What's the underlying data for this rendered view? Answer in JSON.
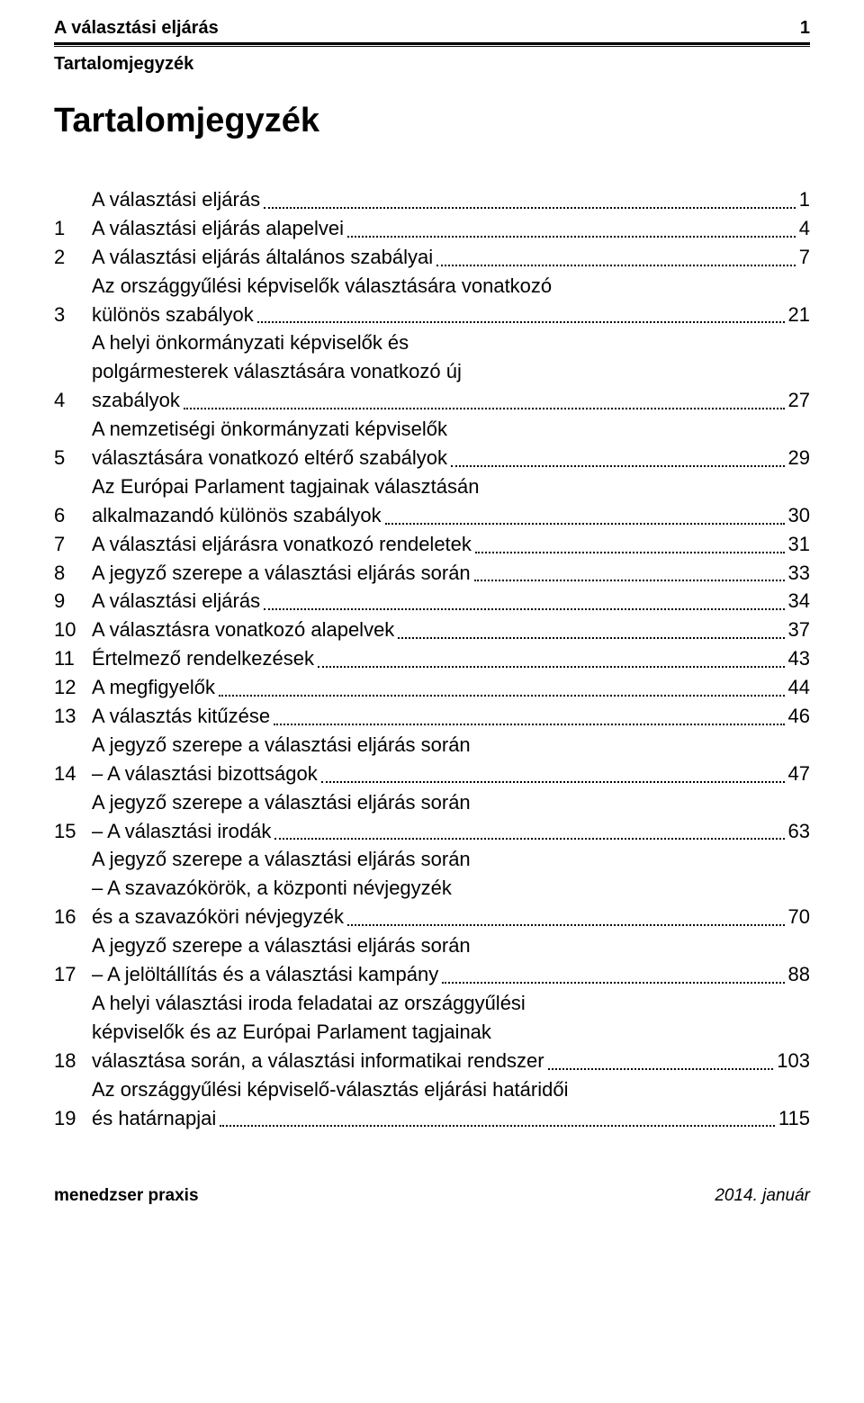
{
  "header": {
    "title": "A választási eljárás",
    "page": "1"
  },
  "section_label": "Tartalomjegyzék",
  "main_title": "Tartalomjegyzék",
  "toc": [
    {
      "num": "",
      "lines": [
        "A választási eljárás"
      ],
      "page": "1"
    },
    {
      "num": "1",
      "lines": [
        "A választási eljárás alapelvei"
      ],
      "page": "4"
    },
    {
      "num": "2",
      "lines": [
        "A választási eljárás általános szabályai"
      ],
      "page": "7"
    },
    {
      "num": "3",
      "lines": [
        "Az országgyűlési képviselők választására vonatkozó",
        "különös szabályok"
      ],
      "page": "21"
    },
    {
      "num": "4",
      "lines": [
        "A helyi önkormányzati képviselők és",
        "polgármesterek választására vonatkozó új",
        "szabályok"
      ],
      "page": "27"
    },
    {
      "num": "5",
      "lines": [
        "A nemzetiségi önkormányzati képviselők",
        "választására vonatkozó eltérő szabályok"
      ],
      "page": "29"
    },
    {
      "num": "6",
      "lines": [
        "Az Európai Parlament tagjainak választásán",
        "alkalmazandó különös szabályok"
      ],
      "page": "30"
    },
    {
      "num": "7",
      "lines": [
        "A választási eljárásra vonatkozó rendeletek"
      ],
      "page": "31"
    },
    {
      "num": "8",
      "lines": [
        "A jegyző szerepe a választási eljárás során"
      ],
      "page": "33"
    },
    {
      "num": "9",
      "lines": [
        "A választási eljárás"
      ],
      "page": "34"
    },
    {
      "num": "10",
      "lines": [
        "A választásra vonatkozó alapelvek"
      ],
      "page": "37"
    },
    {
      "num": "11",
      "lines": [
        "Értelmező rendelkezések"
      ],
      "page": "43"
    },
    {
      "num": "12",
      "lines": [
        "A megfigyelők"
      ],
      "page": "44"
    },
    {
      "num": "13",
      "lines": [
        "A választás kitűzése"
      ],
      "page": "46"
    },
    {
      "num": "14",
      "lines": [
        "A jegyző szerepe a választási eljárás során",
        "– A választási bizottságok"
      ],
      "page": "47"
    },
    {
      "num": "15",
      "lines": [
        "A jegyző szerepe a választási eljárás során",
        "– A választási irodák"
      ],
      "page": "63"
    },
    {
      "num": "16",
      "lines": [
        "A jegyző szerepe a választási eljárás során",
        "– A szavazókörök, a központi névjegyzék",
        "és a szavazóköri névjegyzék"
      ],
      "page": "70"
    },
    {
      "num": "17",
      "lines": [
        "A jegyző szerepe a választási eljárás során",
        "– A jelöltállítás és a választási kampány"
      ],
      "page": "88"
    },
    {
      "num": "18",
      "lines": [
        "A helyi választási iroda feladatai az országgyűlési",
        "képviselők és az Európai Parlament tagjainak",
        "választása során, a választási informatikai rendszer"
      ],
      "page": "103"
    },
    {
      "num": "19",
      "lines": [
        "Az országgyűlési képviselő-választás eljárási határidői",
        "és határnapjai"
      ],
      "page": "115"
    }
  ],
  "footer": {
    "left": "menedzser praxis",
    "right": "2014. január"
  },
  "style": {
    "text_color": "#000000",
    "background": "#ffffff",
    "body_fontsize": 22,
    "header_fontsize": 20,
    "title_fontsize": 38,
    "footer_fontsize": 19
  }
}
